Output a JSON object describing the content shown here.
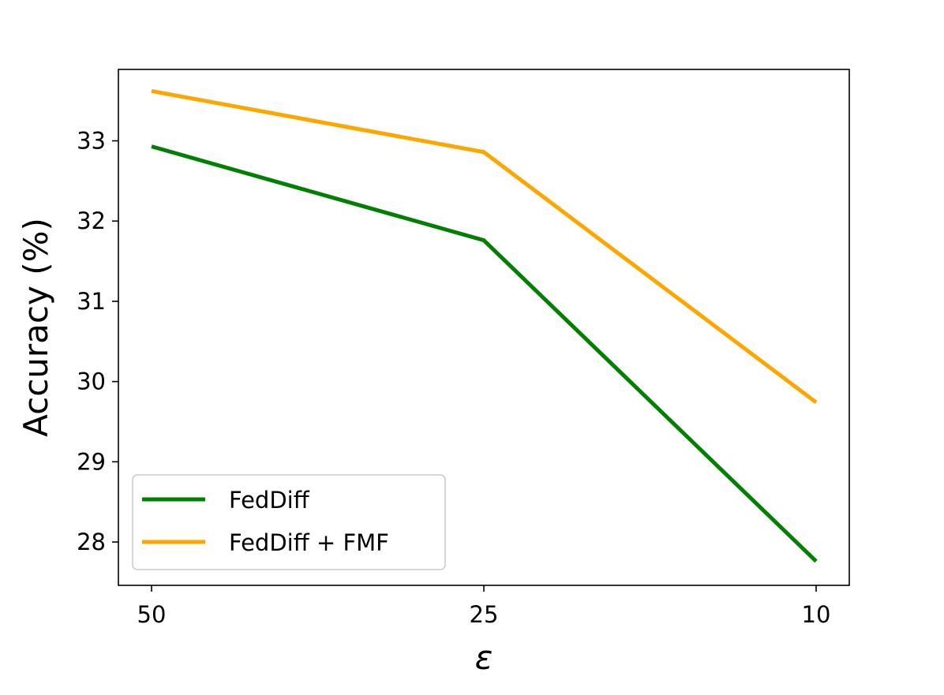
{
  "chart_data": {
    "type": "line",
    "title": "",
    "xlabel": "ε",
    "ylabel": "Accuracy (%)",
    "categories": [
      "50",
      "25",
      "10"
    ],
    "x_tick_labels": [
      "50",
      "25",
      "10"
    ],
    "y_tick_labels": [
      "28",
      "29",
      "30",
      "31",
      "32",
      "33"
    ],
    "y_ticks": [
      28,
      29,
      30,
      31,
      32,
      33
    ],
    "ylim": [
      27.46,
      33.89
    ],
    "grid": false,
    "legend_position": "lower-left",
    "series": [
      {
        "name": "FedDiff",
        "color": "#008000",
        "values": [
          32.93,
          31.76,
          27.76
        ]
      },
      {
        "name": "FedDiff + FMF",
        "color": "#ffa500",
        "values": [
          33.62,
          32.86,
          29.74
        ]
      }
    ]
  }
}
